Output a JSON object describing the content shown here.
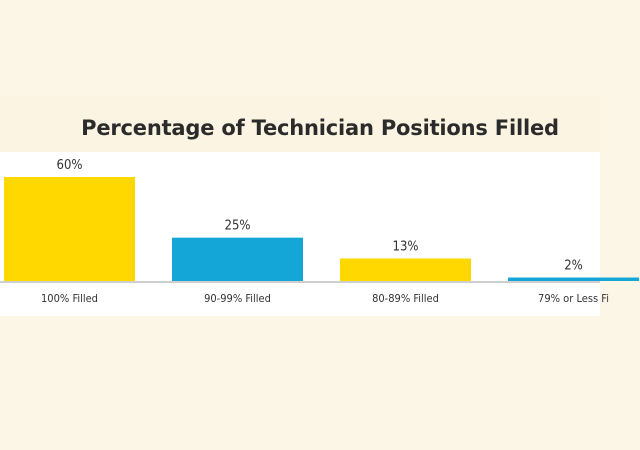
{
  "chart_data": {
    "type": "bar",
    "title": "Percentage of Technician Positions Filled",
    "categories": [
      "100% Filled",
      "90-99% Filled",
      "80-89% Filled",
      "79% or Less Fi"
    ],
    "values": [
      60,
      25,
      13,
      2
    ],
    "data_labels": [
      "60%",
      "25%",
      "13%",
      "2%"
    ],
    "bar_colors": [
      "#ffd800",
      "#14a6d6",
      "#ffd800",
      "#14a6d6"
    ],
    "ylim": [
      0,
      60
    ],
    "grid": false,
    "legend": "none"
  },
  "colors": {
    "background": "#fcf6e6",
    "plot_background": "#ffffff",
    "baseline": "#cfcfcf",
    "text": "#333333"
  }
}
